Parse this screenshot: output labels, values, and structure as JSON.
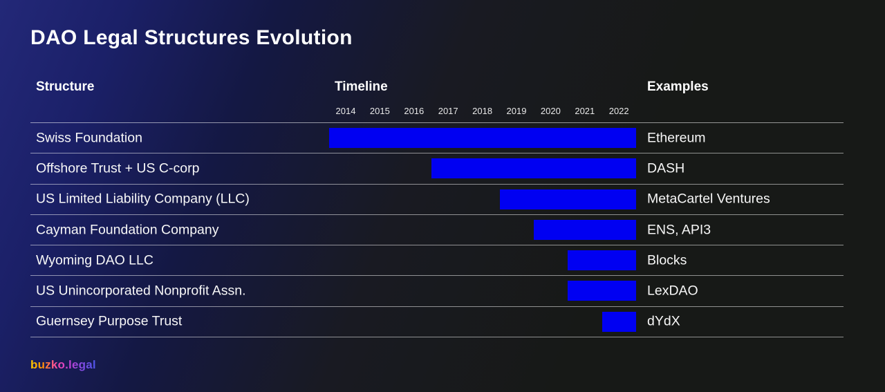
{
  "page": {
    "title": "DAO Legal Structures Evolution",
    "logo": "buzko.legal"
  },
  "table": {
    "columns": {
      "structure": "Structure",
      "timeline": "Timeline",
      "examples": "Examples"
    },
    "years": [
      "2014",
      "2015",
      "2016",
      "2017",
      "2018",
      "2019",
      "2020",
      "2021",
      "2022"
    ],
    "rows": [
      {
        "structure": "Swiss Foundation",
        "start_year": 2014,
        "end_year": 2022,
        "example": "Ethereum"
      },
      {
        "structure": "Offshore Trust + US C-corp",
        "start_year": 2017,
        "end_year": 2022,
        "example": "DASH"
      },
      {
        "structure": "US Limited Liability Company (LLC)",
        "start_year": 2019,
        "end_year": 2022,
        "example": "MetaCartel Ventures"
      },
      {
        "structure": "Cayman Foundation Company",
        "start_year": 2020,
        "end_year": 2022,
        "example": "ENS, API3"
      },
      {
        "structure": "Wyoming DAO LLC",
        "start_year": 2021,
        "end_year": 2022,
        "example": "Blocks"
      },
      {
        "structure": "US Unincorporated Nonprofit Assn.",
        "start_year": 2021,
        "end_year": 2022,
        "example": "LexDAO"
      },
      {
        "structure": "Guernsey Purpose Trust",
        "start_year": 2022,
        "end_year": 2022,
        "example": "dYdX"
      }
    ]
  },
  "colors": {
    "bar": "#0000f2",
    "background_accent": "#232878",
    "background_dark": "#171917",
    "text": "#ffffff",
    "separator": "rgba(255,255,255,0.52)"
  },
  "chart_data": {
    "type": "bar",
    "subtype": "gantt-timeline",
    "title": "DAO Legal Structures Evolution",
    "categories": [
      "Swiss Foundation",
      "Offshore Trust + US C-corp",
      "US Limited Liability Company (LLC)",
      "Cayman Foundation Company",
      "Wyoming DAO LLC",
      "US Unincorporated Nonprofit Assn.",
      "Guernsey Purpose Trust"
    ],
    "series": [
      {
        "name": "Active period (year span)",
        "ranges": [
          [
            2014,
            2022
          ],
          [
            2017,
            2022
          ],
          [
            2019,
            2022
          ],
          [
            2020,
            2022
          ],
          [
            2021,
            2022
          ],
          [
            2021,
            2022
          ],
          [
            2022,
            2022
          ]
        ]
      }
    ],
    "examples": [
      "Ethereum",
      "DASH",
      "MetaCartel Ventures",
      "ENS, API3",
      "Blocks",
      "LexDAO",
      "dYdX"
    ],
    "xlabel": "Timeline",
    "x_ticks": [
      "2014",
      "2015",
      "2016",
      "2017",
      "2018",
      "2019",
      "2020",
      "2021",
      "2022"
    ],
    "x_range": [
      2014,
      2023
    ],
    "bar_color": "#0000f2",
    "legend": "none",
    "grid": "off"
  }
}
